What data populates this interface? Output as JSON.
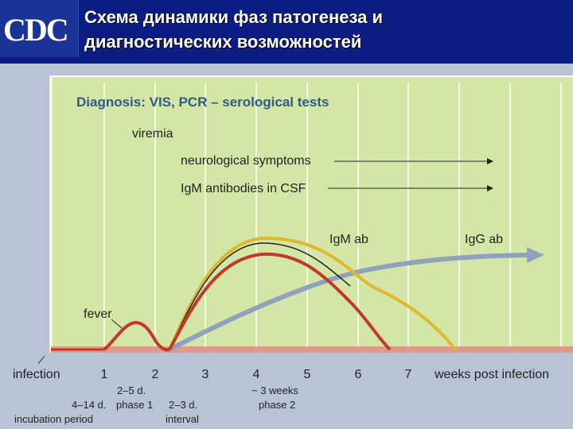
{
  "header": {
    "logo_text": "CDC",
    "title_line1": "Схема динамики фаз патогенеза и",
    "title_line2": "диагностических возможностей"
  },
  "diagram": {
    "heading": "Diagnosis: VIS, PCR – serological tests",
    "labels": {
      "viremia": "viremia",
      "neuro": "neurological symptoms",
      "csf": "IgM antibodies in CSF",
      "igm": "IgM ab",
      "igg": "IgG ab",
      "fever": "fever"
    },
    "axis": {
      "origin": "infection",
      "ticks": [
        "1",
        "2",
        "3",
        "4",
        "5",
        "6",
        "7"
      ],
      "unit": "weeks post infection"
    },
    "phases": {
      "incubation_range": "4–14 d.",
      "incubation": "incubation period",
      "phase1_range": "2–5 d.",
      "phase1": "phase 1",
      "interval_range": "2–3 d.",
      "interval": "interval",
      "phase2_range": "~ 3 weeks",
      "phase2": "phase 2"
    },
    "colors": {
      "panel": "#d4e6a5",
      "viremia": "#c0392b",
      "igm": "#e0b830",
      "igg": "#8ea2bd",
      "header": "#0c1e86"
    }
  }
}
